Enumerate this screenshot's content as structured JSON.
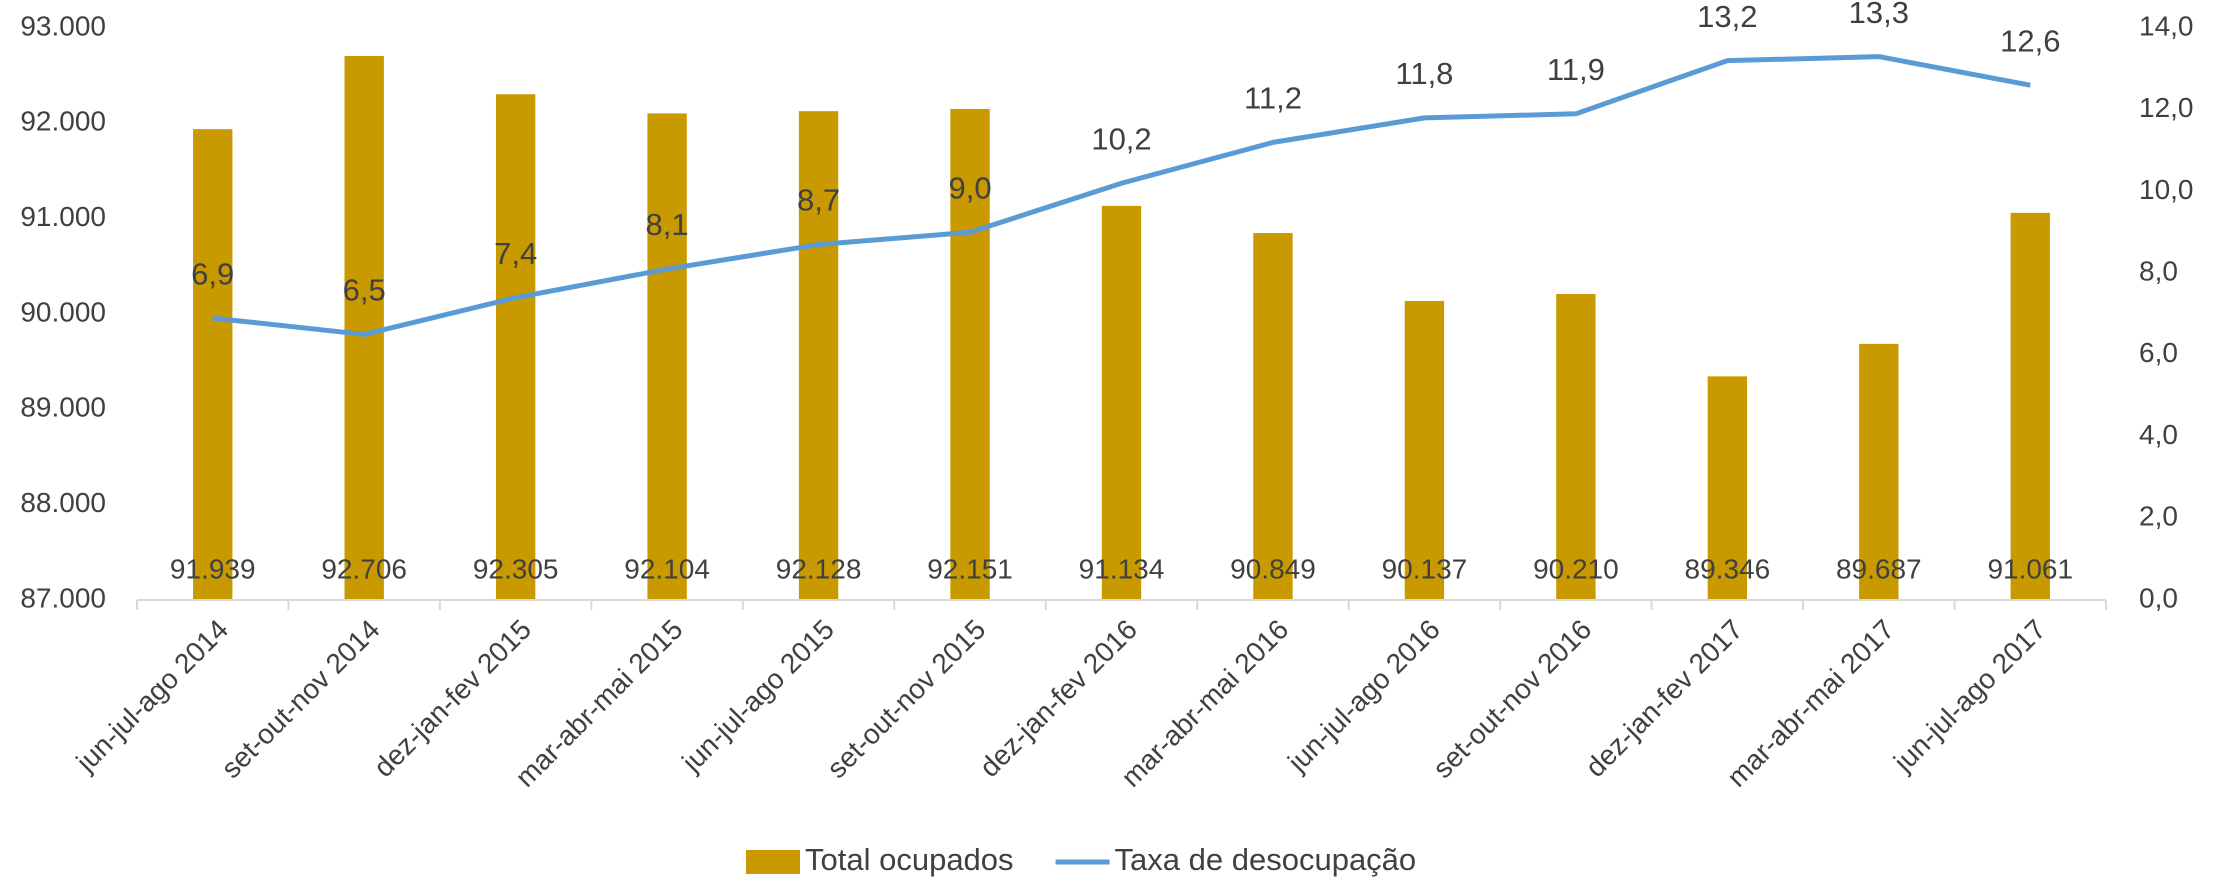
{
  "chart_data": {
    "type": "bar-line",
    "categories": [
      "jun-jul-ago 2014",
      "set-out-nov 2014",
      "dez-jan-fev 2015",
      "mar-abr-mai 2015",
      "jun-jul-ago 2015",
      "set-out-nov 2015",
      "dez-jan-fev 2016",
      "mar-abr-mai 2016",
      "jun-jul-ago 2016",
      "set-out-nov 2016",
      "dez-jan-fev 2017",
      "mar-abr-mai 2017",
      "jun-jul-ago 2017"
    ],
    "series": [
      {
        "name": "Total ocupados",
        "type": "bar",
        "color": "#c99a00",
        "values": [
          91939,
          92706,
          92305,
          92104,
          92128,
          92151,
          91134,
          90849,
          90137,
          90210,
          89346,
          89687,
          91061
        ],
        "value_labels": [
          "91.939",
          "92.706",
          "92.305",
          "92.104",
          "92.128",
          "92.151",
          "91.134",
          "90.849",
          "90.137",
          "90.210",
          "89.346",
          "89.687",
          "91.061"
        ]
      },
      {
        "name": "Taxa de desocupação",
        "type": "line",
        "axis": "y2",
        "color": "#5b9bd5",
        "values": [
          6.9,
          6.5,
          7.4,
          8.1,
          8.7,
          9.0,
          10.2,
          11.2,
          11.8,
          11.9,
          13.2,
          13.3,
          12.6
        ],
        "value_labels": [
          "6,9",
          "6,5",
          "7,4",
          "8,1",
          "8,7",
          "9,0",
          "10,2",
          "11,2",
          "11,8",
          "11,9",
          "13,2",
          "13,3",
          "12,6"
        ]
      }
    ],
    "ylim": [
      87000,
      93000
    ],
    "yticks": [
      {
        "value": 87000,
        "label": "87.000"
      },
      {
        "value": 88000,
        "label": "88.000"
      },
      {
        "value": 89000,
        "label": "89.000"
      },
      {
        "value": 90000,
        "label": "90.000"
      },
      {
        "value": 91000,
        "label": "91.000"
      },
      {
        "value": 92000,
        "label": "92.000"
      },
      {
        "value": 93000,
        "label": "93.000"
      }
    ],
    "y2lim": [
      0,
      14
    ],
    "y2ticks": [
      {
        "value": 0,
        "label": "0,0"
      },
      {
        "value": 2,
        "label": "2,0"
      },
      {
        "value": 4,
        "label": "4,0"
      },
      {
        "value": 6,
        "label": "6,0"
      },
      {
        "value": 8,
        "label": "8,0"
      },
      {
        "value": 10,
        "label": "10,0"
      },
      {
        "value": 12,
        "label": "12,0"
      },
      {
        "value": 14,
        "label": "14,0"
      }
    ],
    "legend": "bottom"
  }
}
